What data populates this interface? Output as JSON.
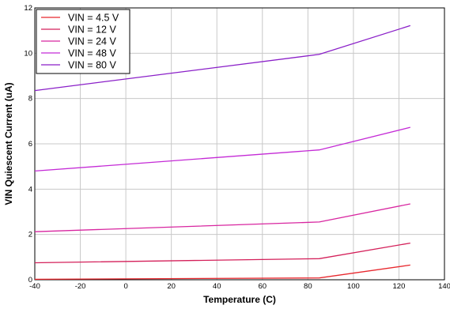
{
  "chart_data": {
    "type": "line",
    "xlabel": "Temperature (C)",
    "ylabel": "VIN Quiescent Current (uA)",
    "xlim": [
      -40,
      140
    ],
    "ylim": [
      0,
      12
    ],
    "xticks": [
      -40,
      -20,
      0,
      20,
      40,
      60,
      80,
      100,
      120,
      140
    ],
    "yticks": [
      0,
      2,
      4,
      6,
      8,
      10,
      12
    ],
    "grid": true,
    "legend_position": "top-left",
    "series": [
      {
        "name": "VIN = 4.5 V",
        "color": "#e8282e",
        "x": [
          -40,
          85,
          125
        ],
        "y": [
          0.02,
          0.08,
          0.65
        ]
      },
      {
        "name": "VIN = 12 V",
        "color": "#d4205a",
        "x": [
          -40,
          85,
          125
        ],
        "y": [
          0.75,
          0.93,
          1.62
        ]
      },
      {
        "name": "VIN = 24 V",
        "color": "#d826a0",
        "x": [
          -40,
          85,
          125
        ],
        "y": [
          2.12,
          2.55,
          3.35
        ]
      },
      {
        "name": "VIN = 48 V",
        "color": "#c42ad6",
        "x": [
          -40,
          85,
          125
        ],
        "y": [
          4.8,
          5.73,
          6.73
        ]
      },
      {
        "name": "VIN = 80 V",
        "color": "#8a1fc8",
        "x": [
          -40,
          85,
          125
        ],
        "y": [
          8.35,
          9.95,
          11.22
        ]
      }
    ]
  }
}
